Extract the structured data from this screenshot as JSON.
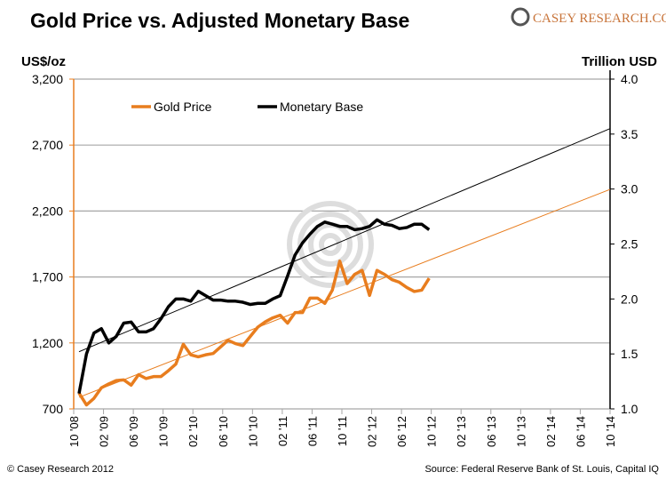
{
  "chart_data": {
    "type": "line",
    "title": "Gold Price vs. Adjusted Monetary Base",
    "brand": "CASEY RESEARCH.COM",
    "ylabel_left": "US$/oz",
    "ylabel_right": "Trillion USD",
    "ylim_left": [
      700,
      3200
    ],
    "ylim_right": [
      1.0,
      4.0
    ],
    "yticks_left": [
      "700",
      "1,200",
      "1,700",
      "2,200",
      "2,700",
      "3,200"
    ],
    "yticks_right": [
      "1.0",
      "1.5",
      "2.0",
      "2.5",
      "3.0",
      "3.5",
      "4.0"
    ],
    "xticks": [
      "10 '08",
      "02 '09",
      "06 '09",
      "10 '09",
      "02 '10",
      "06 '10",
      "10 '10",
      "02 '11",
      "06 '11",
      "10 '11",
      "02 '12",
      "06 '12",
      "10 '12",
      "02 '13",
      "06 '13",
      "10 '13",
      "02 '14",
      "06 '14",
      "10 '14"
    ],
    "x_start": "Oct 2008",
    "x_end": "Oct 2014",
    "x_step": "monthly",
    "grid": true,
    "legend_placement": "top-left",
    "series": [
      {
        "name": "Gold Price",
        "axis": "left",
        "color": "#e87d1e",
        "values": [
          820,
          730,
          780,
          860,
          890,
          915,
          920,
          880,
          960,
          930,
          945,
          945,
          990,
          1040,
          1190,
          1110,
          1095,
          1110,
          1120,
          1170,
          1220,
          1195,
          1180,
          1250,
          1320,
          1360,
          1390,
          1410,
          1350,
          1430,
          1430,
          1540,
          1540,
          1500,
          1600,
          1820,
          1650,
          1720,
          1750,
          1560,
          1750,
          1720,
          1680,
          1660,
          1620,
          1590,
          1600,
          1690
        ]
      },
      {
        "name": "Monetary Base",
        "axis": "right",
        "color": "#000000",
        "values": [
          1.14,
          1.5,
          1.69,
          1.73,
          1.6,
          1.66,
          1.78,
          1.79,
          1.7,
          1.7,
          1.73,
          1.82,
          1.93,
          2.0,
          2.0,
          1.98,
          2.07,
          2.03,
          1.99,
          1.99,
          1.98,
          1.98,
          1.97,
          1.95,
          1.96,
          1.96,
          2.0,
          2.03,
          2.21,
          2.4,
          2.51,
          2.59,
          2.66,
          2.7,
          2.68,
          2.66,
          2.66,
          2.63,
          2.64,
          2.66,
          2.72,
          2.68,
          2.67,
          2.64,
          2.65,
          2.68,
          2.68,
          2.63
        ]
      }
    ],
    "trendlines": [
      {
        "series": "Gold Price",
        "axis": "left",
        "color": "#e87d1e",
        "from": [
          "Oct 2008",
          788
        ],
        "to": [
          "Oct 2014",
          2364
        ]
      },
      {
        "series": "Monetary Base",
        "axis": "right",
        "color": "#000000",
        "from": [
          "Oct 2008",
          1.52
        ],
        "to": [
          "Oct 2014",
          3.55
        ]
      }
    ],
    "footer_left": "© Casey Research 2012",
    "footer_right": "Source: Federal Reserve Bank of St. Louis, Capital IQ"
  }
}
